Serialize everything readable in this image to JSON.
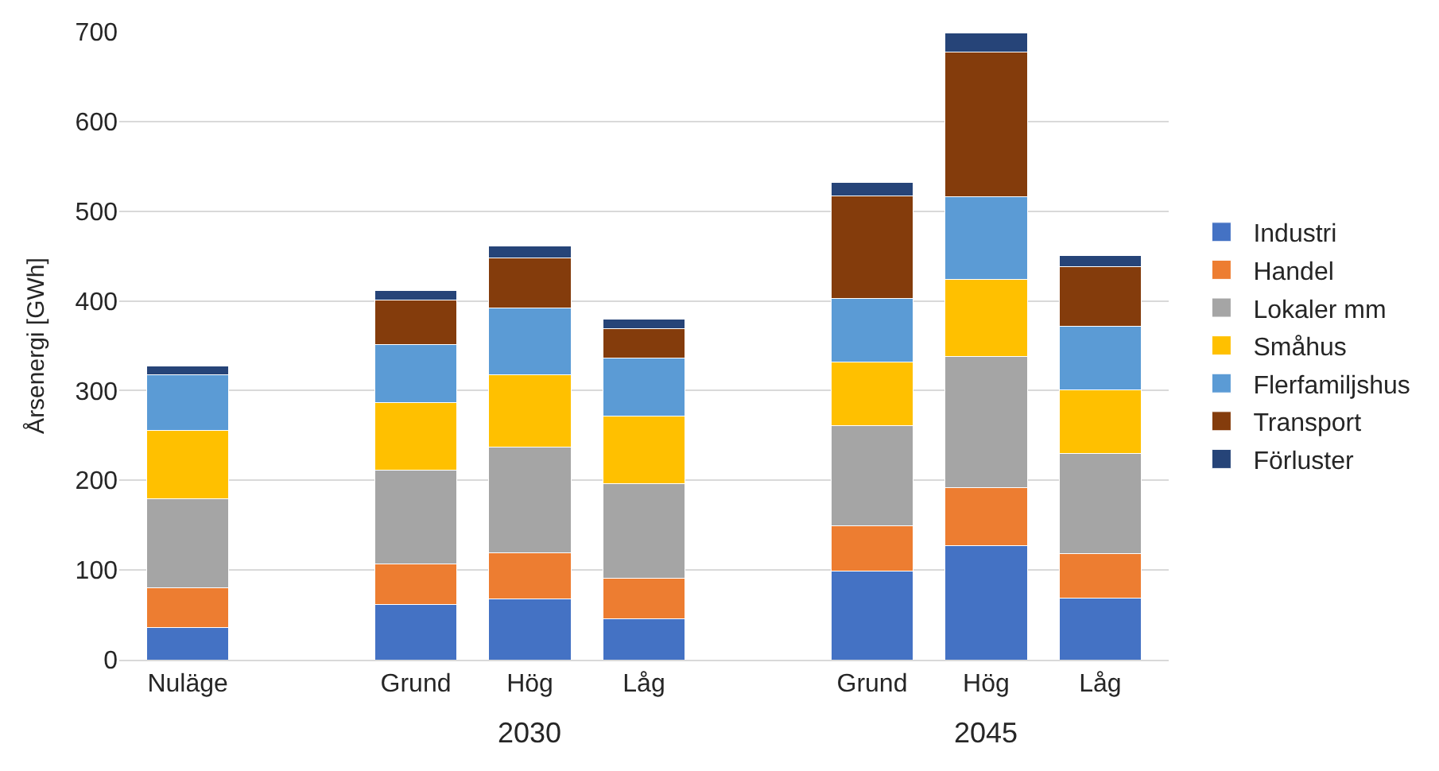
{
  "chart_data": {
    "type": "bar",
    "stacked": true,
    "ylabel": "Årsenergi [GWh]",
    "categories": [
      "Nuläge",
      null,
      "Grund",
      "Hög",
      "Låg",
      null,
      "Grund",
      "Hög",
      "Låg"
    ],
    "series": [
      {
        "name": "Industri",
        "color": "#4472c4",
        "values": [
          36,
          null,
          62,
          68,
          46,
          null,
          99,
          127,
          69
        ]
      },
      {
        "name": "Handel",
        "color": "#ed7d31",
        "values": [
          44,
          null,
          45,
          51,
          45,
          null,
          50,
          65,
          49
        ]
      },
      {
        "name": "Lokaler mm",
        "color": "#a5a5a5",
        "values": [
          99,
          null,
          104,
          118,
          105,
          null,
          112,
          146,
          112
        ]
      },
      {
        "name": "Småhus",
        "color": "#ffc000",
        "values": [
          77,
          null,
          76,
          81,
          76,
          null,
          71,
          86,
          71
        ]
      },
      {
        "name": "Flerfamiljshus",
        "color": "#5b9bd5",
        "values": [
          62,
          null,
          64,
          74,
          64,
          null,
          71,
          92,
          71
        ]
      },
      {
        "name": "Transport",
        "color": "#843c0c",
        "values": [
          0,
          null,
          50,
          56,
          33,
          null,
          114,
          161,
          66
        ]
      },
      {
        "name": "Förluster",
        "color": "#264478",
        "values": [
          9,
          null,
          11,
          13,
          11,
          null,
          15,
          22,
          13
        ]
      }
    ],
    "annotations": [
      "2030",
      "2045"
    ],
    "ylim": [
      0,
      700
    ],
    "yticks": [
      0,
      100,
      200,
      300,
      400,
      500,
      600,
      700
    ],
    "grid": "y",
    "legend": "right"
  }
}
